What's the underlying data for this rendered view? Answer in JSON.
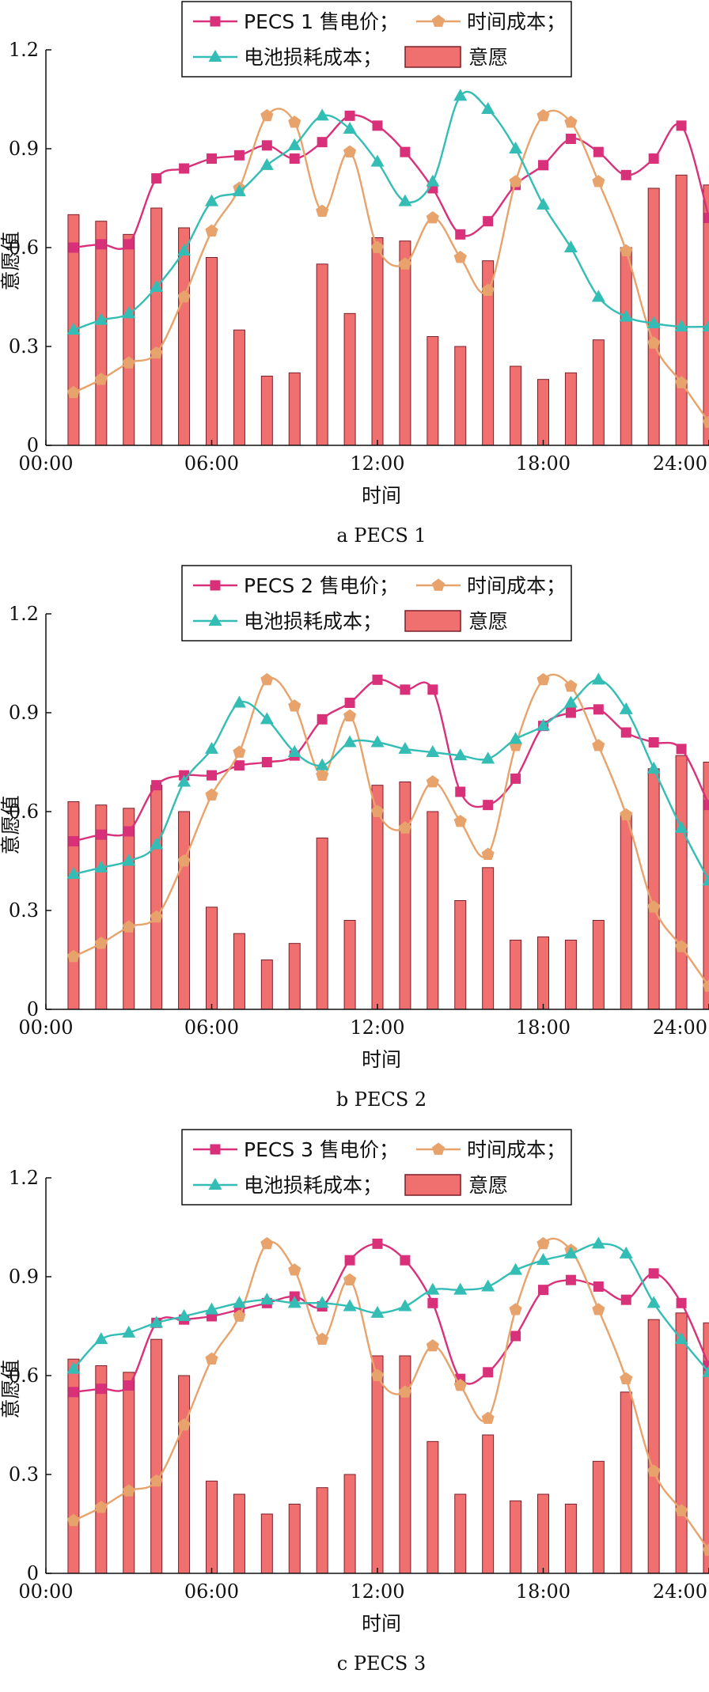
{
  "chart_data": [
    {
      "type": "bar",
      "caption": "a  PECS 1",
      "xlabel": "时间",
      "ylabel": "意愿值",
      "ylim": [
        0,
        1.2
      ],
      "xlim_hours": [
        0,
        24
      ],
      "yticks": [
        "0",
        "0.3",
        "0.6",
        "0.9",
        "1.2"
      ],
      "xticks": [
        "00:00",
        "06:00",
        "12:00",
        "18:00",
        "24:00"
      ],
      "x_hours": [
        1,
        2,
        3,
        4,
        5,
        6,
        7,
        8,
        9,
        10,
        11,
        12,
        13,
        14,
        15,
        16,
        17,
        18,
        19,
        20,
        21,
        22,
        23,
        24
      ],
      "legend": {
        "position": "top-center",
        "price": "PECS 1 售电价；",
        "time": "时间成本；",
        "battery": "电池损耗成本；",
        "willing": "意愿"
      },
      "series": [
        {
          "name": "意愿",
          "kind": "bar",
          "color": "#f07070",
          "values": [
            0.7,
            0.68,
            0.64,
            0.72,
            0.66,
            0.57,
            0.35,
            0.21,
            0.22,
            0.55,
            0.4,
            0.63,
            0.62,
            0.33,
            0.3,
            0.56,
            0.24,
            0.2,
            0.22,
            0.32,
            0.6,
            0.78,
            0.82,
            0.79
          ]
        },
        {
          "name": "PECS 1 售电价",
          "kind": "line",
          "marker": "square",
          "color": "#d9307a",
          "values": [
            0.6,
            0.61,
            0.61,
            0.81,
            0.84,
            0.87,
            0.88,
            0.91,
            0.87,
            0.92,
            1.0,
            0.97,
            0.89,
            0.78,
            0.64,
            0.68,
            0.79,
            0.85,
            0.93,
            0.89,
            0.82,
            0.87,
            0.97,
            0.69
          ]
        },
        {
          "name": "时间成本",
          "kind": "line",
          "marker": "pentagon",
          "color": "#e7a36b",
          "values": [
            0.16,
            0.2,
            0.25,
            0.28,
            0.45,
            0.65,
            0.78,
            1.0,
            0.98,
            0.71,
            0.89,
            0.6,
            0.55,
            0.69,
            0.57,
            0.47,
            0.8,
            1.0,
            0.98,
            0.8,
            0.59,
            0.31,
            0.19,
            0.07
          ]
        },
        {
          "name": "电池损耗成本",
          "kind": "line",
          "marker": "triangle",
          "color": "#33bdb5",
          "values": [
            0.35,
            0.38,
            0.4,
            0.48,
            0.59,
            0.74,
            0.77,
            0.85,
            0.91,
            1.0,
            0.96,
            0.86,
            0.74,
            0.8,
            1.06,
            1.02,
            0.9,
            0.73,
            0.6,
            0.45,
            0.39,
            0.37,
            0.36,
            0.36
          ]
        }
      ]
    },
    {
      "type": "bar",
      "caption": "b  PECS 2",
      "xlabel": "时间",
      "ylabel": "意愿值",
      "ylim": [
        0,
        1.2
      ],
      "xlim_hours": [
        0,
        24
      ],
      "yticks": [
        "0",
        "0.3",
        "0.6",
        "0.9",
        "1.2"
      ],
      "xticks": [
        "00:00",
        "06:00",
        "12:00",
        "18:00",
        "24:00"
      ],
      "x_hours": [
        1,
        2,
        3,
        4,
        5,
        6,
        7,
        8,
        9,
        10,
        11,
        12,
        13,
        14,
        15,
        16,
        17,
        18,
        19,
        20,
        21,
        22,
        23,
        24
      ],
      "legend": {
        "position": "top-center",
        "price": "PECS 2 售电价；",
        "time": "时间成本；",
        "battery": "电池损耗成本；",
        "willing": "意愿"
      },
      "series": [
        {
          "name": "意愿",
          "kind": "bar",
          "color": "#f07070",
          "values": [
            0.63,
            0.62,
            0.61,
            0.68,
            0.6,
            0.31,
            0.23,
            0.15,
            0.2,
            0.52,
            0.27,
            0.68,
            0.69,
            0.6,
            0.33,
            0.43,
            0.21,
            0.22,
            0.21,
            0.27,
            0.59,
            0.73,
            0.77,
            0.75
          ]
        },
        {
          "name": "PECS 2 售电价",
          "kind": "line",
          "marker": "square",
          "color": "#d9307a",
          "values": [
            0.51,
            0.53,
            0.54,
            0.68,
            0.71,
            0.71,
            0.74,
            0.75,
            0.77,
            0.88,
            0.93,
            1.0,
            0.97,
            0.97,
            0.66,
            0.62,
            0.7,
            0.86,
            0.9,
            0.91,
            0.84,
            0.81,
            0.79,
            0.62
          ]
        },
        {
          "name": "时间成本",
          "kind": "line",
          "marker": "pentagon",
          "color": "#e7a36b",
          "values": [
            0.16,
            0.2,
            0.25,
            0.28,
            0.45,
            0.65,
            0.78,
            1.0,
            0.92,
            0.71,
            0.89,
            0.6,
            0.55,
            0.69,
            0.57,
            0.47,
            0.8,
            1.0,
            0.98,
            0.8,
            0.59,
            0.31,
            0.19,
            0.07
          ]
        },
        {
          "name": "电池损耗成本",
          "kind": "line",
          "marker": "triangle",
          "color": "#33bdb5",
          "values": [
            0.41,
            0.43,
            0.45,
            0.5,
            0.69,
            0.79,
            0.93,
            0.88,
            0.78,
            0.74,
            0.81,
            0.81,
            0.79,
            0.78,
            0.77,
            0.76,
            0.82,
            0.86,
            0.93,
            1.0,
            0.91,
            0.73,
            0.55,
            0.39
          ]
        }
      ]
    },
    {
      "type": "bar",
      "caption": "c  PECS 3",
      "xlabel": "时间",
      "ylabel": "意愿值",
      "ylim": [
        0,
        1.2
      ],
      "xlim_hours": [
        0,
        24
      ],
      "yticks": [
        "0",
        "0.3",
        "0.6",
        "0.9",
        "1.2"
      ],
      "xticks": [
        "00:00",
        "06:00",
        "12:00",
        "18:00",
        "24:00"
      ],
      "x_hours": [
        1,
        2,
        3,
        4,
        5,
        6,
        7,
        8,
        9,
        10,
        11,
        12,
        13,
        14,
        15,
        16,
        17,
        18,
        19,
        20,
        21,
        22,
        23,
        24
      ],
      "legend": {
        "position": "top-center",
        "price": "PECS 3 售电价；",
        "time": "时间成本；",
        "battery": "电池损耗成本；",
        "willing": "意愿"
      },
      "series": [
        {
          "name": "意愿",
          "kind": "bar",
          "color": "#f07070",
          "values": [
            0.65,
            0.63,
            0.61,
            0.71,
            0.6,
            0.28,
            0.24,
            0.18,
            0.21,
            0.26,
            0.3,
            0.66,
            0.66,
            0.4,
            0.24,
            0.42,
            0.22,
            0.24,
            0.21,
            0.34,
            0.55,
            0.77,
            0.79,
            0.76
          ]
        },
        {
          "name": "PECS 3 售电价",
          "kind": "line",
          "marker": "square",
          "color": "#d9307a",
          "values": [
            0.55,
            0.56,
            0.57,
            0.76,
            0.77,
            0.78,
            0.8,
            0.82,
            0.84,
            0.81,
            0.95,
            1.0,
            0.95,
            0.82,
            0.59,
            0.61,
            0.72,
            0.86,
            0.89,
            0.87,
            0.83,
            0.91,
            0.82,
            0.63
          ]
        },
        {
          "name": "时间成本",
          "kind": "line",
          "marker": "pentagon",
          "color": "#e7a36b",
          "values": [
            0.16,
            0.2,
            0.25,
            0.28,
            0.45,
            0.65,
            0.78,
            1.0,
            0.92,
            0.71,
            0.89,
            0.6,
            0.55,
            0.69,
            0.57,
            0.47,
            0.8,
            1.0,
            0.98,
            0.8,
            0.59,
            0.31,
            0.19,
            0.07
          ]
        },
        {
          "name": "电池损耗成本",
          "kind": "line",
          "marker": "triangle",
          "color": "#33bdb5",
          "values": [
            0.62,
            0.71,
            0.73,
            0.76,
            0.78,
            0.8,
            0.82,
            0.83,
            0.82,
            0.82,
            0.81,
            0.79,
            0.81,
            0.86,
            0.86,
            0.87,
            0.92,
            0.95,
            0.97,
            1.0,
            0.97,
            0.82,
            0.71,
            0.61
          ]
        }
      ]
    }
  ]
}
